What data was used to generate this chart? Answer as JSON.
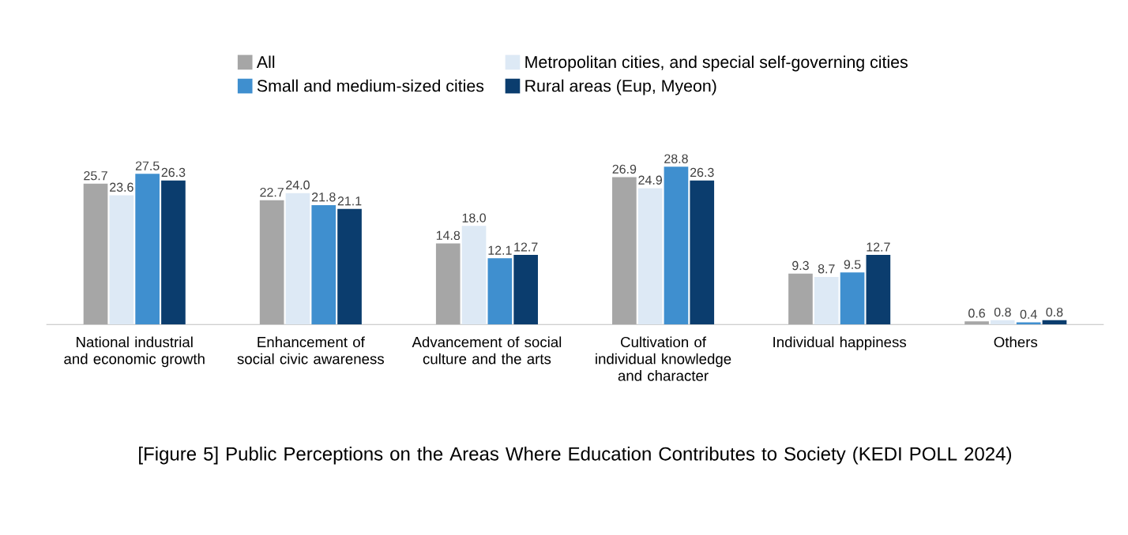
{
  "chart_data": {
    "type": "bar",
    "title": "[Figure 5] Public Perceptions on the Areas Where Education Contributes to Society (KEDI POLL 2024)",
    "categories": [
      "National industrial and economic growth",
      "Enhancement of social civic awareness",
      "Advancement of social culture and the arts",
      "Cultivation of individual knowledge and character",
      "Individual happiness",
      "Others"
    ],
    "series": [
      {
        "name": "All",
        "color": "#a6a6a6",
        "values": [
          25.7,
          22.7,
          14.8,
          26.9,
          9.3,
          0.6
        ],
        "value_labels": [
          "25.7",
          "22.7",
          "14.8",
          "26.9",
          "9.3",
          "0.6"
        ]
      },
      {
        "name": "Metropolitan cities, and special self-governing cities",
        "color": "#dde9f5",
        "values": [
          23.6,
          24.0,
          18.0,
          24.9,
          8.7,
          0.8
        ],
        "value_labels": [
          "23.6",
          "24.0",
          "18.0",
          "24.9",
          "8.7",
          "0.8"
        ]
      },
      {
        "name": "Small and medium-sized cities",
        "color": "#3f8fcf",
        "values": [
          27.5,
          21.8,
          12.1,
          28.8,
          9.5,
          0.4
        ],
        "value_labels": [
          "27.5",
          "21.8",
          "12.1",
          "28.8",
          "9.5",
          "0.4"
        ]
      },
      {
        "name": "Rural areas (Eup, Myeon)",
        "color": "#0b3d6e",
        "values": [
          26.3,
          21.1,
          12.7,
          26.3,
          12.7,
          0.8
        ],
        "value_labels": [
          "26.3",
          "21.1",
          "12.7",
          "26.3",
          "12.7",
          "0.8"
        ]
      }
    ],
    "legend": "top"
  }
}
